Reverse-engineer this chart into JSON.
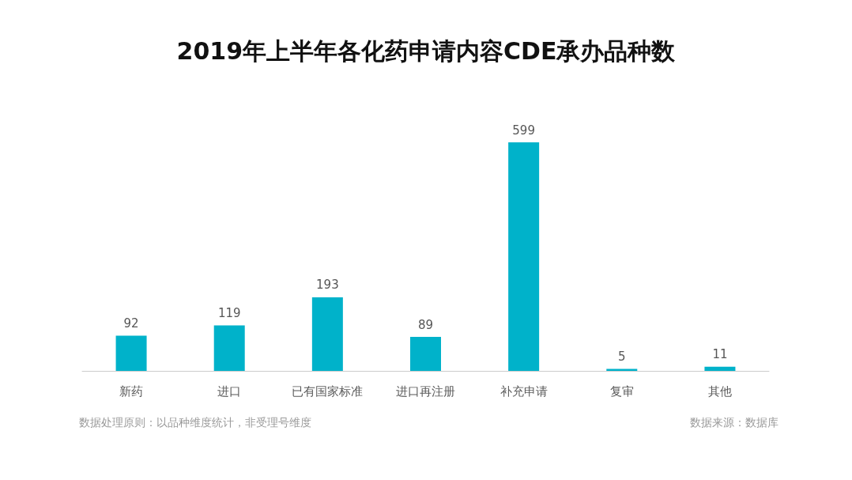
{
  "chart_data": {
    "type": "bar",
    "title": "2019年上半年各化药申请内容CDE承办品种数",
    "categories": [
      "新药",
      "进口",
      "已有国家标准",
      "进口再注册",
      "补充申请",
      "复审",
      "其他"
    ],
    "values": [
      92,
      119,
      193,
      89,
      599,
      5,
      11
    ],
    "color": "#00b2ca",
    "data_labels": true,
    "annotations": [
      "数据处理原则：以品种维度统计，非受理号维度",
      "数据来源：数据库"
    ]
  }
}
